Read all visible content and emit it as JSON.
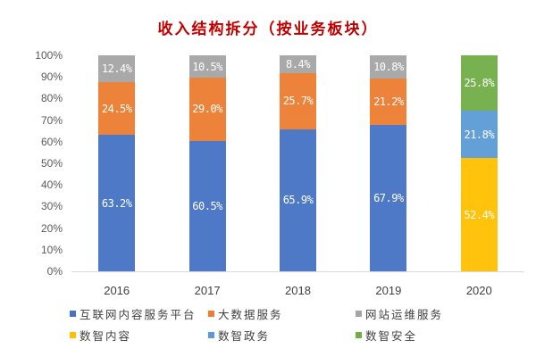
{
  "chart_data": {
    "type": "bar",
    "stacked": "percent",
    "title": "收入结构拆分（按业务板块）",
    "xlabel": "",
    "ylabel": "",
    "ylim": [
      0,
      100
    ],
    "yticks": [
      "0%",
      "10%",
      "20%",
      "30%",
      "40%",
      "50%",
      "60%",
      "70%",
      "80%",
      "90%",
      "100%"
    ],
    "categories": [
      "2016",
      "2017",
      "2018",
      "2019",
      "2020"
    ],
    "series": [
      {
        "name": "互联网内容服务平台",
        "color": "#4472C4",
        "values": [
          63.2,
          60.5,
          65.9,
          67.9,
          0
        ],
        "labels": [
          "63.2%",
          "60.5%",
          "65.9%",
          "67.9%",
          ""
        ]
      },
      {
        "name": "大数据服务",
        "color": "#ED7D31",
        "values": [
          24.5,
          29.0,
          25.7,
          21.2,
          0
        ],
        "labels": [
          "24.5%",
          "29.0%",
          "25.7%",
          "21.2%",
          ""
        ]
      },
      {
        "name": "网站运维服务",
        "color": "#A5A5A5",
        "values": [
          12.4,
          10.5,
          8.4,
          10.8,
          0
        ],
        "labels": [
          "12.4%",
          "10.5%",
          "8.4%",
          "10.8%",
          ""
        ]
      },
      {
        "name": "数智内容",
        "color": "#FFC000",
        "values": [
          0,
          0,
          0,
          0,
          52.4
        ],
        "labels": [
          "",
          "",
          "",
          "",
          "52.4%"
        ]
      },
      {
        "name": "数智政务",
        "color": "#5B9BD5",
        "values": [
          0,
          0,
          0,
          0,
          21.8
        ],
        "labels": [
          "",
          "",
          "",
          "",
          "21.8%"
        ]
      },
      {
        "name": "数智安全",
        "color": "#70AD47",
        "values": [
          0,
          0,
          0,
          0,
          25.8
        ],
        "labels": [
          "",
          "",
          "",
          "",
          "25.8%"
        ]
      }
    ],
    "grid": false,
    "legend_position": "bottom"
  }
}
